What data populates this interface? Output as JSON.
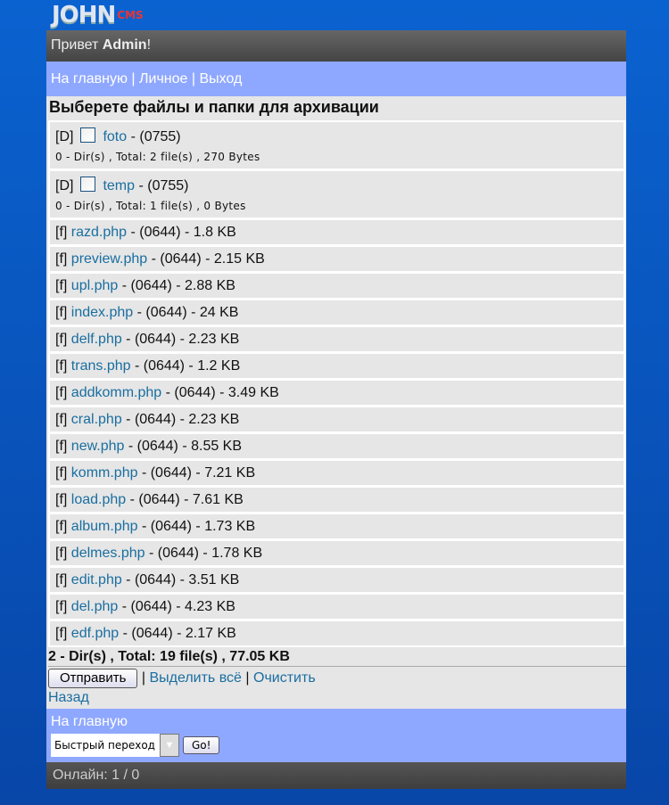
{
  "logo": {
    "text": "JOHN",
    "suffix": "CMS"
  },
  "header": {
    "greeting": "Привет ",
    "user": "Admin",
    "exclam": "!"
  },
  "nav": {
    "home": "На главную",
    "personal": "Личное",
    "logout": "Выход",
    "sep": "|"
  },
  "title": "Выберете файлы и папки для архивации",
  "dirs": [
    {
      "tag": "[D]",
      "name": "foto",
      "perm": " - (0755)",
      "info": "0 - Dir(s) , Total: 2 file(s) , 270 Bytes"
    },
    {
      "tag": "[D]",
      "name": "temp",
      "perm": " - (0755)",
      "info": "0 - Dir(s) , Total: 1 file(s) , 0 Bytes"
    }
  ],
  "files": [
    {
      "name": "razd.php",
      "meta": " - (0644) - 1.8 KB"
    },
    {
      "name": "preview.php",
      "meta": " - (0644) - 2.15 KB"
    },
    {
      "name": "upl.php",
      "meta": " - (0644) - 2.88 KB"
    },
    {
      "name": "index.php",
      "meta": " - (0644) - 24 KB"
    },
    {
      "name": "delf.php",
      "meta": " - (0644) - 2.23 KB"
    },
    {
      "name": "trans.php",
      "meta": " - (0644) - 1.2 KB"
    },
    {
      "name": "addkomm.php",
      "meta": " - (0644) - 3.49 KB"
    },
    {
      "name": "cral.php",
      "meta": " - (0644) - 2.23 KB"
    },
    {
      "name": "new.php",
      "meta": " - (0644) - 8.55 KB"
    },
    {
      "name": "komm.php",
      "meta": " - (0644) - 7.21 KB"
    },
    {
      "name": "load.php",
      "meta": " - (0644) - 7.61 KB"
    },
    {
      "name": "album.php",
      "meta": " - (0644) - 1.73 KB"
    },
    {
      "name": "delmes.php",
      "meta": " - (0644) - 1.78 KB"
    },
    {
      "name": "edit.php",
      "meta": " - (0644) - 3.51 KB"
    },
    {
      "name": "del.php",
      "meta": " - (0644) - 4.23 KB"
    },
    {
      "name": "edf.php",
      "meta": " - (0644) - 2.17 KB"
    }
  ],
  "file_tag": "[f]",
  "total": "2 - Dir(s) , Total: 19 file(s) , 77.05 KB",
  "actions": {
    "submit": "Отправить",
    "select_all": "Выделить всё",
    "clear": "Очистить",
    "back": "Назад",
    "sep": "|"
  },
  "footer": {
    "home": "На главную",
    "quick_select": "Быстрый переход",
    "go": "Go!",
    "online": "Онлайн: 1 / 0"
  }
}
